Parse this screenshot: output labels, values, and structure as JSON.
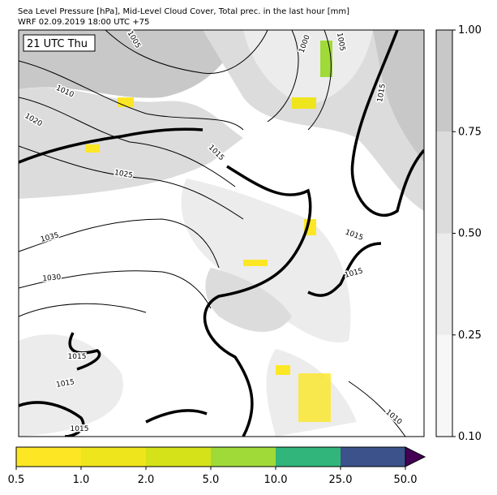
{
  "title_lines": [
    "Sea Level Pressure [hPa], Mid-Level Cloud Cover, Total prec. in the last hour [mm]",
    "WRF 02.09.2019 18:00 UTC +75"
  ],
  "time_label": "21 UTC Thu",
  "contour_labels": [
    1005,
    1000,
    1005,
    1010,
    1020,
    1015,
    1025,
    1035,
    1030,
    1015,
    1015,
    1015,
    1015,
    1015,
    1010,
    1015
  ],
  "cloud_colorbar": {
    "ticks": [
      {
        "value": 0.1,
        "label": "0.10"
      },
      {
        "value": 0.25,
        "label": "0.25"
      },
      {
        "value": 0.5,
        "label": "0.50"
      },
      {
        "value": 0.75,
        "label": "0.75"
      },
      {
        "value": 1.0,
        "label": "1.00"
      }
    ],
    "colors": [
      "#f7f7f7",
      "#ececec",
      "#dcdcdc",
      "#c8c8c8"
    ]
  },
  "precip_colorbar": {
    "ticks": [
      {
        "value": 0.5,
        "label": "0.5"
      },
      {
        "value": 1.0,
        "label": "1.0"
      },
      {
        "value": 2.0,
        "label": "2.0"
      },
      {
        "value": 5.0,
        "label": "5.0"
      },
      {
        "value": 10.0,
        "label": "10.0"
      },
      {
        "value": 25.0,
        "label": "25.0"
      },
      {
        "value": 50.0,
        "label": "50.0"
      }
    ],
    "colors": [
      "#fde725",
      "#efe51c",
      "#d5e21a",
      "#a0da39",
      "#31b57b",
      "#3b528b"
    ],
    "extend_color": "#440154"
  }
}
